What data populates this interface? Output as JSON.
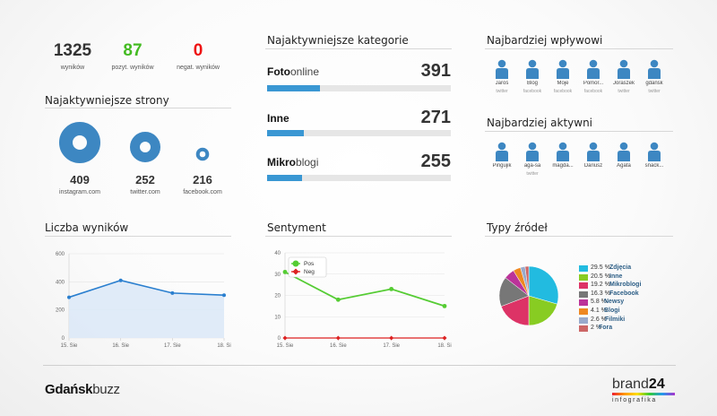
{
  "stats": [
    {
      "value": "1325",
      "label": "wyników",
      "color": "#333333"
    },
    {
      "value": "87",
      "label": "pozyt. wyników",
      "color": "#44bb22"
    },
    {
      "value": "0",
      "label": "negat. wyników",
      "color": "#ee1111"
    }
  ],
  "top_sites": {
    "title": "Najaktywniejsze strony",
    "items": [
      {
        "value": "409",
        "label": "instagram.com"
      },
      {
        "value": "252",
        "label": "twitter.com"
      },
      {
        "value": "216",
        "label": "facebook.com"
      }
    ]
  },
  "top_categories": {
    "title": "Najaktywniejsze kategorie",
    "items": [
      {
        "name_bold": "Foto",
        "name_thin": "online",
        "value": "391",
        "fill": 0.29
      },
      {
        "name_bold": "Inne",
        "name_thin": "",
        "value": "271",
        "fill": 0.2
      },
      {
        "name_bold": "Mikro",
        "name_thin": "blogi",
        "value": "255",
        "fill": 0.19
      }
    ]
  },
  "influential": {
    "title": "Najbardziej wpływowi",
    "people": [
      {
        "name": "Jaroś",
        "source": "twitter"
      },
      {
        "name": "Blog",
        "source": "facebook"
      },
      {
        "name": "Moje",
        "source": "facebook"
      },
      {
        "name": "Pomor...",
        "source": "facebook"
      },
      {
        "name": "Joraszek",
        "source": "twitter"
      },
      {
        "name": "gdansk",
        "source": "twitter"
      }
    ]
  },
  "active": {
    "title": "Najbardziej aktywni",
    "people": [
      {
        "name": "Pingujik",
        "source": ""
      },
      {
        "name": "aga-sa",
        "source": "twitter"
      },
      {
        "name": "magda...",
        "source": ""
      },
      {
        "name": "Dariusz",
        "source": ""
      },
      {
        "name": "Agata",
        "source": ""
      },
      {
        "name": "snack...",
        "source": ""
      }
    ]
  },
  "results_chart": {
    "title": "Liczba wyników",
    "chart_data": {
      "type": "area",
      "categories": [
        "15. Sie",
        "16. Sie",
        "17. Sie",
        "18. Si"
      ],
      "values": [
        290,
        410,
        320,
        305
      ],
      "ylim": [
        0,
        600
      ],
      "yticks": [
        "0",
        "200",
        "400",
        "600"
      ],
      "color": "#2a7fcf"
    }
  },
  "sentiment_chart": {
    "title": "Sentyment",
    "chart_data": {
      "type": "line",
      "categories": [
        "15. Sie",
        "16. Sie",
        "17. Sie",
        "18. Si"
      ],
      "ylim": [
        0,
        40
      ],
      "yticks": [
        "0",
        "10",
        "20",
        "30",
        "40"
      ],
      "series": [
        {
          "name": "Pos",
          "values": [
            31,
            18,
            23,
            15
          ],
          "color": "#55cc33"
        },
        {
          "name": "Neg",
          "values": [
            0,
            0,
            0,
            0
          ],
          "color": "#dd2222"
        }
      ]
    }
  },
  "sources_chart": {
    "title": "Typy źródeł",
    "chart_data": {
      "type": "pie",
      "slices": [
        {
          "pct": "29.5 %",
          "label": "Zdjęcia",
          "value": 29.5,
          "color": "#22bbe0"
        },
        {
          "pct": "20.5 %",
          "label": "Inne",
          "value": 20.5,
          "color": "#88cc22"
        },
        {
          "pct": "19.2 %",
          "label": "Mikroblogi",
          "value": 19.2,
          "color": "#dd3366"
        },
        {
          "pct": "16.3 %",
          "label": "Facebook",
          "value": 16.3,
          "color": "#777777"
        },
        {
          "pct": "5.8 %",
          "label": "Newsy",
          "value": 5.8,
          "color": "#bb3399"
        },
        {
          "pct": "4.1 %",
          "label": "Blogi",
          "value": 4.1,
          "color": "#ee8822"
        },
        {
          "pct": "2.6 %",
          "label": "Filmiki",
          "value": 2.6,
          "color": "#99aacc"
        },
        {
          "pct": "2 %",
          "label": "Fora",
          "value": 2.0,
          "color": "#cc6666"
        }
      ]
    }
  },
  "footer": {
    "brand_left_bold": "Gdańsk",
    "brand_left_thin": "buzz",
    "brand_right_thin": "brand",
    "brand_right_bold": "24",
    "brand_right_sub": "infografika"
  }
}
